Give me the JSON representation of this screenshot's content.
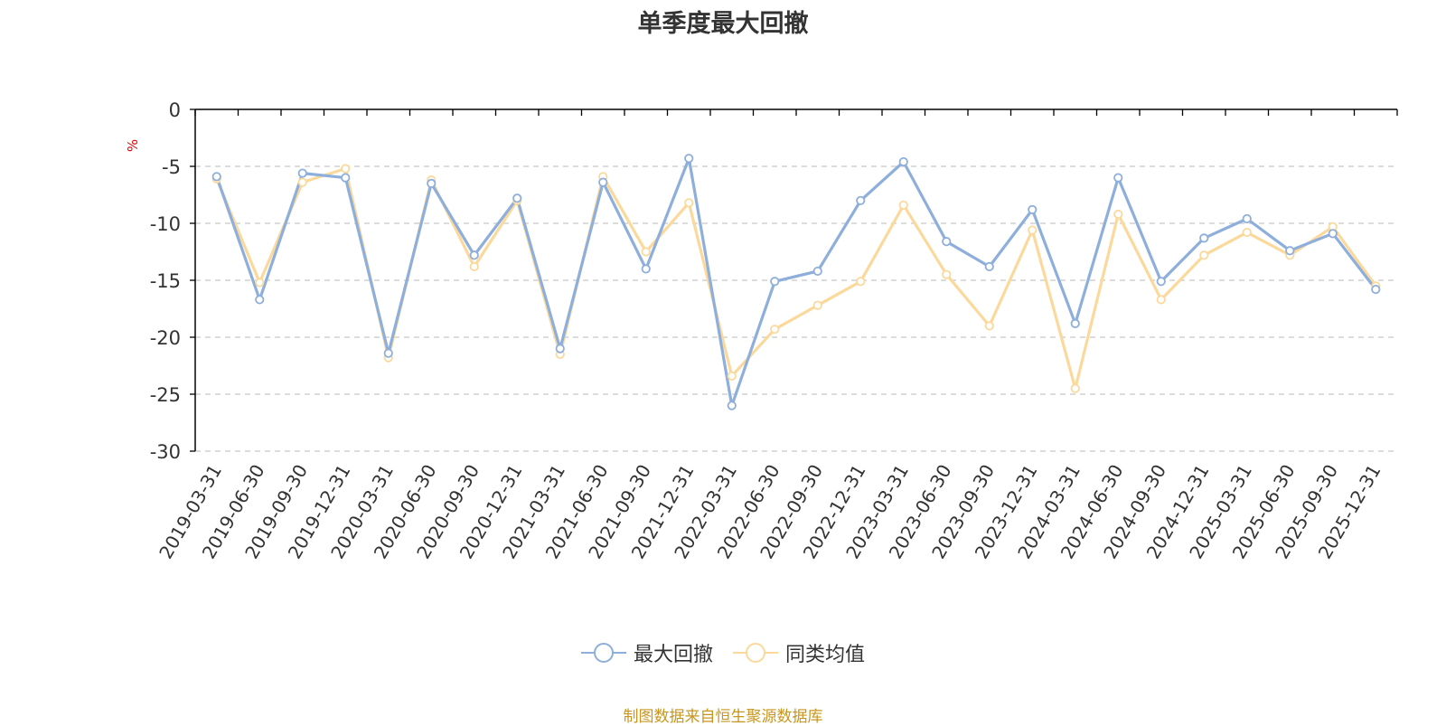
{
  "title": "单季度最大回撤",
  "unit": "%",
  "source": "制图数据来自恒生聚源数据库",
  "colors": {
    "series1": "#8eaedb",
    "series2": "#fbd99c",
    "axis": "#000000",
    "grid": "#c8c8c8",
    "text": "#333333"
  },
  "chart_data": {
    "type": "line",
    "title": "单季度最大回撤",
    "ylabel": "%",
    "ylim": [
      -30,
      0
    ],
    "yticks": [
      0,
      -5,
      -10,
      -15,
      -20,
      -25,
      -30
    ],
    "grid": true,
    "legend_position": "bottom",
    "categories": [
      "2019-03-31",
      "2019-06-30",
      "2019-09-30",
      "2019-12-31",
      "2020-03-31",
      "2020-06-30",
      "2020-09-30",
      "2020-12-31",
      "2021-03-31",
      "2021-06-30",
      "2021-09-30",
      "2021-12-31",
      "2022-03-31",
      "2022-06-30",
      "2022-09-30",
      "2022-12-31",
      "2023-03-31",
      "2023-06-30",
      "2023-09-30",
      "2023-12-31",
      "2024-03-31",
      "2024-06-30",
      "2024-09-30",
      "2024-12-31",
      "2025-03-31",
      "2025-06-30",
      "2025-09-30",
      "2025-12-31"
    ],
    "series": [
      {
        "name": "最大回撤",
        "values": [
          -5.9,
          -16.7,
          -5.6,
          -6.0,
          -21.4,
          -6.5,
          -12.8,
          -7.8,
          -21.0,
          -6.4,
          -14.0,
          -4.3,
          -26.0,
          -15.1,
          -14.2,
          -8.0,
          -4.6,
          -11.6,
          -13.8,
          -8.8,
          -18.8,
          -6.0,
          -15.1,
          -11.3,
          -9.6,
          -12.4,
          -10.9,
          -15.8
        ]
      },
      {
        "name": "同类均值",
        "values": [
          -6.1,
          -15.2,
          -6.4,
          -5.2,
          -21.8,
          -6.2,
          -13.8,
          -8.0,
          -21.5,
          -5.9,
          -12.5,
          -8.2,
          -23.4,
          -19.3,
          -17.2,
          -15.1,
          -8.4,
          -14.5,
          -19.0,
          -10.6,
          -24.5,
          -9.2,
          -16.7,
          -12.8,
          -10.8,
          -12.8,
          -10.3,
          -15.5
        ]
      }
    ]
  }
}
